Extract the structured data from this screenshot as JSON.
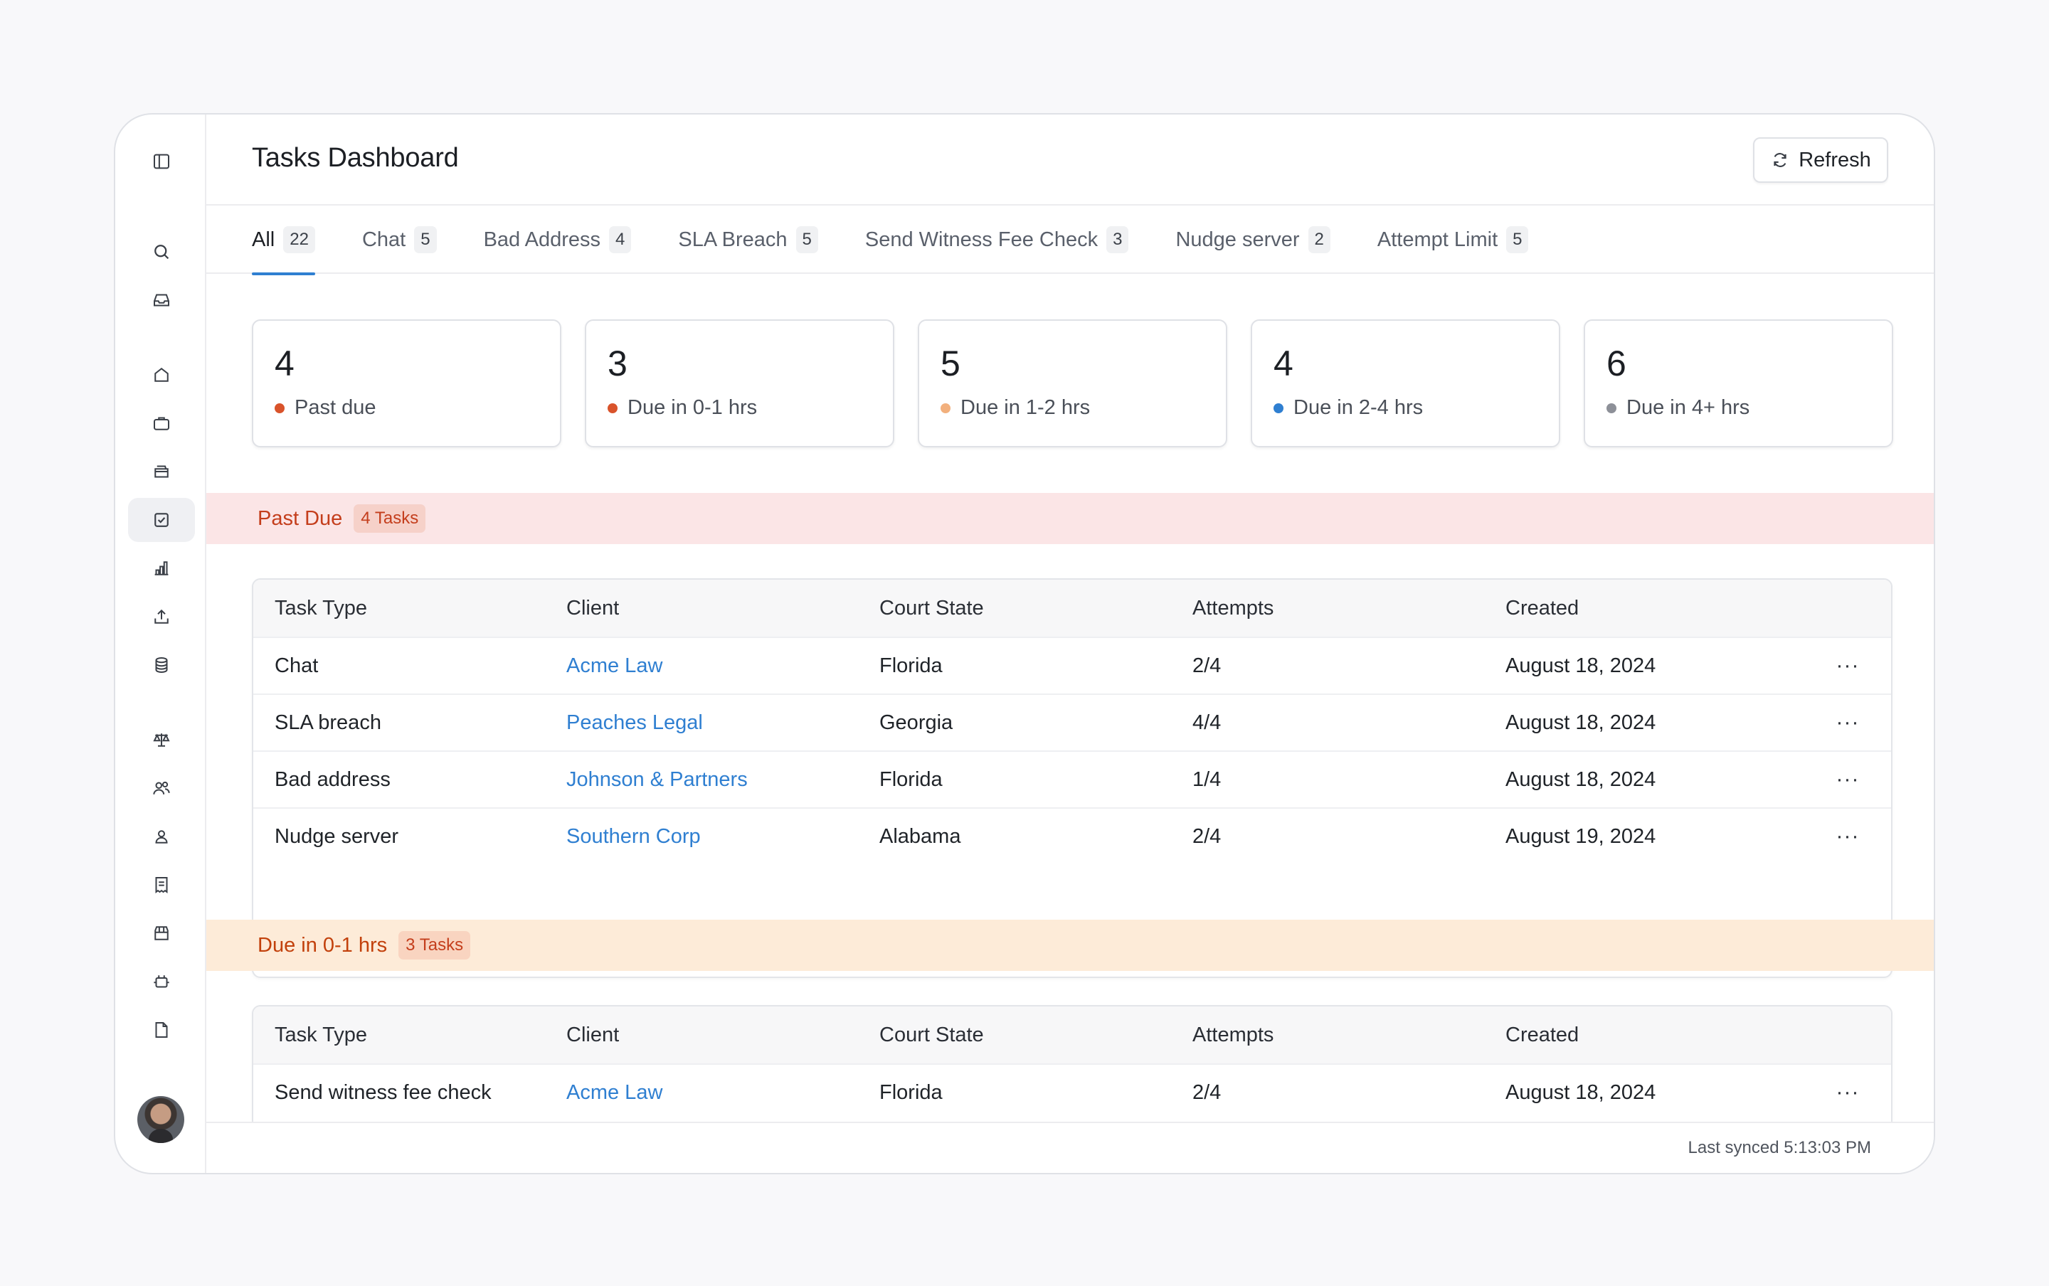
{
  "header": {
    "title": "Tasks Dashboard",
    "refresh_label": "Refresh"
  },
  "tabs": [
    {
      "label": "All",
      "count": "22"
    },
    {
      "label": "Chat",
      "count": "5"
    },
    {
      "label": "Bad Address",
      "count": "4"
    },
    {
      "label": "SLA Breach",
      "count": "5"
    },
    {
      "label": "Send Witness Fee Check",
      "count": "3"
    },
    {
      "label": "Nudge server",
      "count": "2"
    },
    {
      "label": "Attempt Limit",
      "count": "5"
    }
  ],
  "cards": [
    {
      "value": "4",
      "label": "Past due",
      "color": "#d9532b"
    },
    {
      "value": "3",
      "label": "Due in 0-1 hrs",
      "color": "#d9532b"
    },
    {
      "value": "5",
      "label": "Due in 1-2 hrs",
      "color": "#f2b07d"
    },
    {
      "value": "4",
      "label": "Due in 2-4 hrs",
      "color": "#2f7fd1"
    },
    {
      "value": "6",
      "label": "Due in 4+ hrs",
      "color": "#8d9098"
    }
  ],
  "columns": [
    "Task Type",
    "Client",
    "Court State",
    "Attempts",
    "Created"
  ],
  "sections": [
    {
      "title": "Past Due",
      "badge": "4 Tasks",
      "rows": [
        {
          "type": "Chat",
          "client": "Acme Law",
          "state": "Florida",
          "attempts": "2/4",
          "created": "August 18, 2024",
          "more": "···"
        },
        {
          "type": "SLA breach",
          "client": "Peaches Legal",
          "state": "Georgia",
          "attempts": "4/4",
          "created": "August 18, 2024",
          "more": "···"
        },
        {
          "type": "Bad address",
          "client": "Johnson & Partners",
          "state": "Florida",
          "attempts": "1/4",
          "created": "August 18, 2024",
          "more": "···"
        },
        {
          "type": "Nudge server",
          "client": "Southern Corp",
          "state": "Alabama",
          "attempts": "2/4",
          "created": "August 19, 2024",
          "more": "···"
        }
      ]
    },
    {
      "title": "Due in 0-1 hrs",
      "badge": "3 Tasks",
      "rows": [
        {
          "type": "Send witness fee check",
          "client": "Acme Law",
          "state": "Florida",
          "attempts": "2/4",
          "created": "August 18, 2024",
          "more": "···"
        }
      ]
    }
  ],
  "footer": {
    "last_synced": "Last synced 5:13:03 PM"
  },
  "colors": {
    "accent": "#2f7fd1",
    "past_due_band": "#fbe5e6",
    "due_soon_band": "#fdebd8"
  },
  "sidebar": {
    "icons": [
      "sidebar-toggle-icon",
      "search-icon",
      "inbox-icon",
      "home-icon",
      "briefcase-icon",
      "folders-icon",
      "tasks-icon",
      "chart-icon",
      "upload-icon",
      "database-icon",
      "scale-icon",
      "users-icon",
      "user-icon",
      "receipt-icon",
      "store-icon",
      "integration-icon",
      "file-icon"
    ],
    "active": "tasks-icon"
  }
}
